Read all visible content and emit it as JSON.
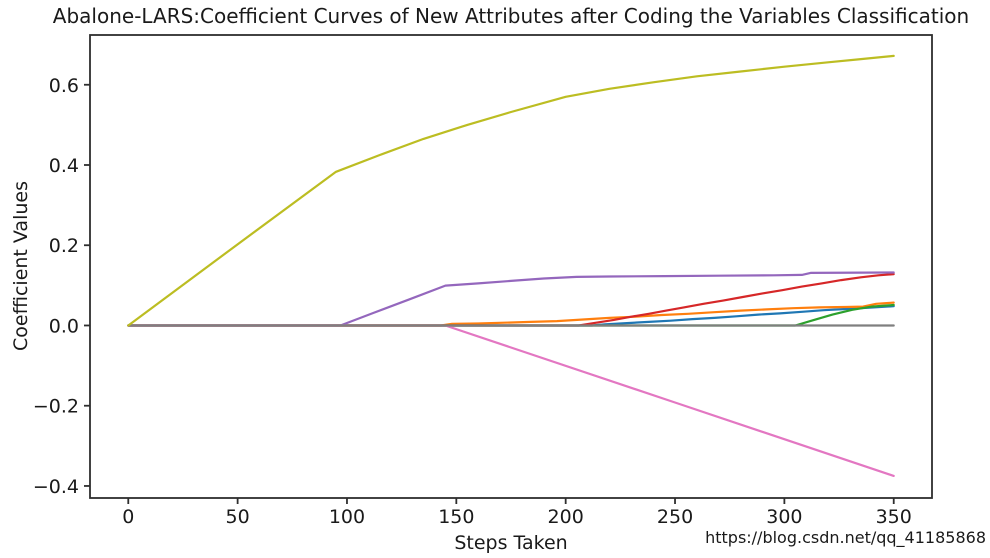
{
  "watermark": {
    "text": "https://blog.csdn.net/qq_41185868",
    "color": "#dbdbdb"
  },
  "chart_data": {
    "type": "line",
    "title": "Abalone-LARS:Coefficient Curves of New Attributes after Coding the Variables Classification",
    "xlabel": "Steps Taken",
    "ylabel": "Coefficient Values",
    "xlim": [
      -17.5,
      367.5
    ],
    "ylim": [
      -0.43,
      0.724
    ],
    "grid": false,
    "legend": "none",
    "axis_color": "#2e2e2e",
    "background": "#ffffff",
    "xticks": {
      "values": [
        0,
        50,
        100,
        150,
        200,
        250,
        300,
        350
      ],
      "labels": [
        "0",
        "50",
        "100",
        "150",
        "200",
        "250",
        "300",
        "350"
      ]
    },
    "yticks": {
      "values": [
        -0.4,
        -0.2,
        0.0,
        0.2,
        0.4,
        0.6
      ],
      "labels": [
        "−0.4",
        "−0.2",
        "0.0",
        "0.2",
        "0.4",
        "0.6"
      ]
    },
    "series": [
      {
        "name": "series-blue",
        "color": "#1f77b4",
        "points": [
          [
            0,
            0
          ],
          [
            212,
            0
          ],
          [
            218,
            0.003
          ],
          [
            228,
            0.006
          ],
          [
            238,
            0.009
          ],
          [
            248,
            0.012
          ],
          [
            258,
            0.016
          ],
          [
            268,
            0.019
          ],
          [
            278,
            0.023
          ],
          [
            288,
            0.027
          ],
          [
            298,
            0.03
          ],
          [
            308,
            0.034
          ],
          [
            318,
            0.038
          ],
          [
            328,
            0.041
          ],
          [
            338,
            0.044
          ],
          [
            350,
            0.048
          ]
        ]
      },
      {
        "name": "series-orange",
        "color": "#ff7f0e",
        "points": [
          [
            0,
            0
          ],
          [
            143,
            0
          ],
          [
            148,
            0.004
          ],
          [
            160,
            0.005
          ],
          [
            172,
            0.007
          ],
          [
            184,
            0.009
          ],
          [
            196,
            0.011
          ],
          [
            208,
            0.015
          ],
          [
            220,
            0.019
          ],
          [
            232,
            0.022
          ],
          [
            244,
            0.026
          ],
          [
            256,
            0.029
          ],
          [
            268,
            0.033
          ],
          [
            280,
            0.037
          ],
          [
            292,
            0.04
          ],
          [
            304,
            0.043
          ],
          [
            316,
            0.045
          ],
          [
            328,
            0.046
          ],
          [
            336,
            0.047
          ],
          [
            342,
            0.054
          ],
          [
            350,
            0.057
          ]
        ]
      },
      {
        "name": "series-green",
        "color": "#2ca02c",
        "points": [
          [
            0,
            0
          ],
          [
            305,
            0
          ],
          [
            313,
            0.013
          ],
          [
            322,
            0.027
          ],
          [
            331,
            0.039
          ],
          [
            340,
            0.047
          ],
          [
            350,
            0.051
          ]
        ]
      },
      {
        "name": "series-red",
        "color": "#d62728",
        "points": [
          [
            0,
            0
          ],
          [
            206,
            0
          ],
          [
            214,
            0.007
          ],
          [
            222,
            0.014
          ],
          [
            230,
            0.022
          ],
          [
            238,
            0.029
          ],
          [
            246,
            0.037
          ],
          [
            254,
            0.045
          ],
          [
            263,
            0.054
          ],
          [
            272,
            0.062
          ],
          [
            281,
            0.071
          ],
          [
            290,
            0.08
          ],
          [
            299,
            0.088
          ],
          [
            308,
            0.097
          ],
          [
            317,
            0.105
          ],
          [
            326,
            0.113
          ],
          [
            335,
            0.12
          ],
          [
            343,
            0.125
          ],
          [
            350,
            0.128
          ]
        ]
      },
      {
        "name": "series-purple",
        "color": "#9467bd",
        "points": [
          [
            0,
            0
          ],
          [
            97,
            0
          ],
          [
            112,
            0.031
          ],
          [
            128,
            0.064
          ],
          [
            145,
            0.0995
          ],
          [
            160,
            0.105
          ],
          [
            175,
            0.111
          ],
          [
            190,
            0.117
          ],
          [
            205,
            0.121
          ],
          [
            220,
            0.122
          ],
          [
            245,
            0.123
          ],
          [
            270,
            0.124
          ],
          [
            295,
            0.125
          ],
          [
            308,
            0.126
          ],
          [
            312,
            0.131
          ],
          [
            350,
            0.132
          ]
        ]
      },
      {
        "name": "series-pink",
        "color": "#e377c2",
        "points": [
          [
            0,
            0
          ],
          [
            145,
            0
          ],
          [
            250,
            -0.192
          ],
          [
            350,
            -0.375
          ]
        ]
      },
      {
        "name": "series-gray",
        "color": "#7f7f7f",
        "points": [
          [
            0,
            0
          ],
          [
            350,
            0
          ]
        ]
      },
      {
        "name": "series-olive",
        "color": "#bcbd22",
        "points": [
          [
            0,
            0
          ],
          [
            48,
            0.194
          ],
          [
            95,
            0.383
          ],
          [
            115,
            0.425
          ],
          [
            135,
            0.465
          ],
          [
            155,
            0.5
          ],
          [
            175,
            0.532
          ],
          [
            200,
            0.57
          ],
          [
            220,
            0.59
          ],
          [
            240,
            0.606
          ],
          [
            260,
            0.621
          ],
          [
            280,
            0.633
          ],
          [
            300,
            0.645
          ],
          [
            320,
            0.656
          ],
          [
            335,
            0.664
          ],
          [
            350,
            0.672
          ]
        ]
      }
    ]
  }
}
